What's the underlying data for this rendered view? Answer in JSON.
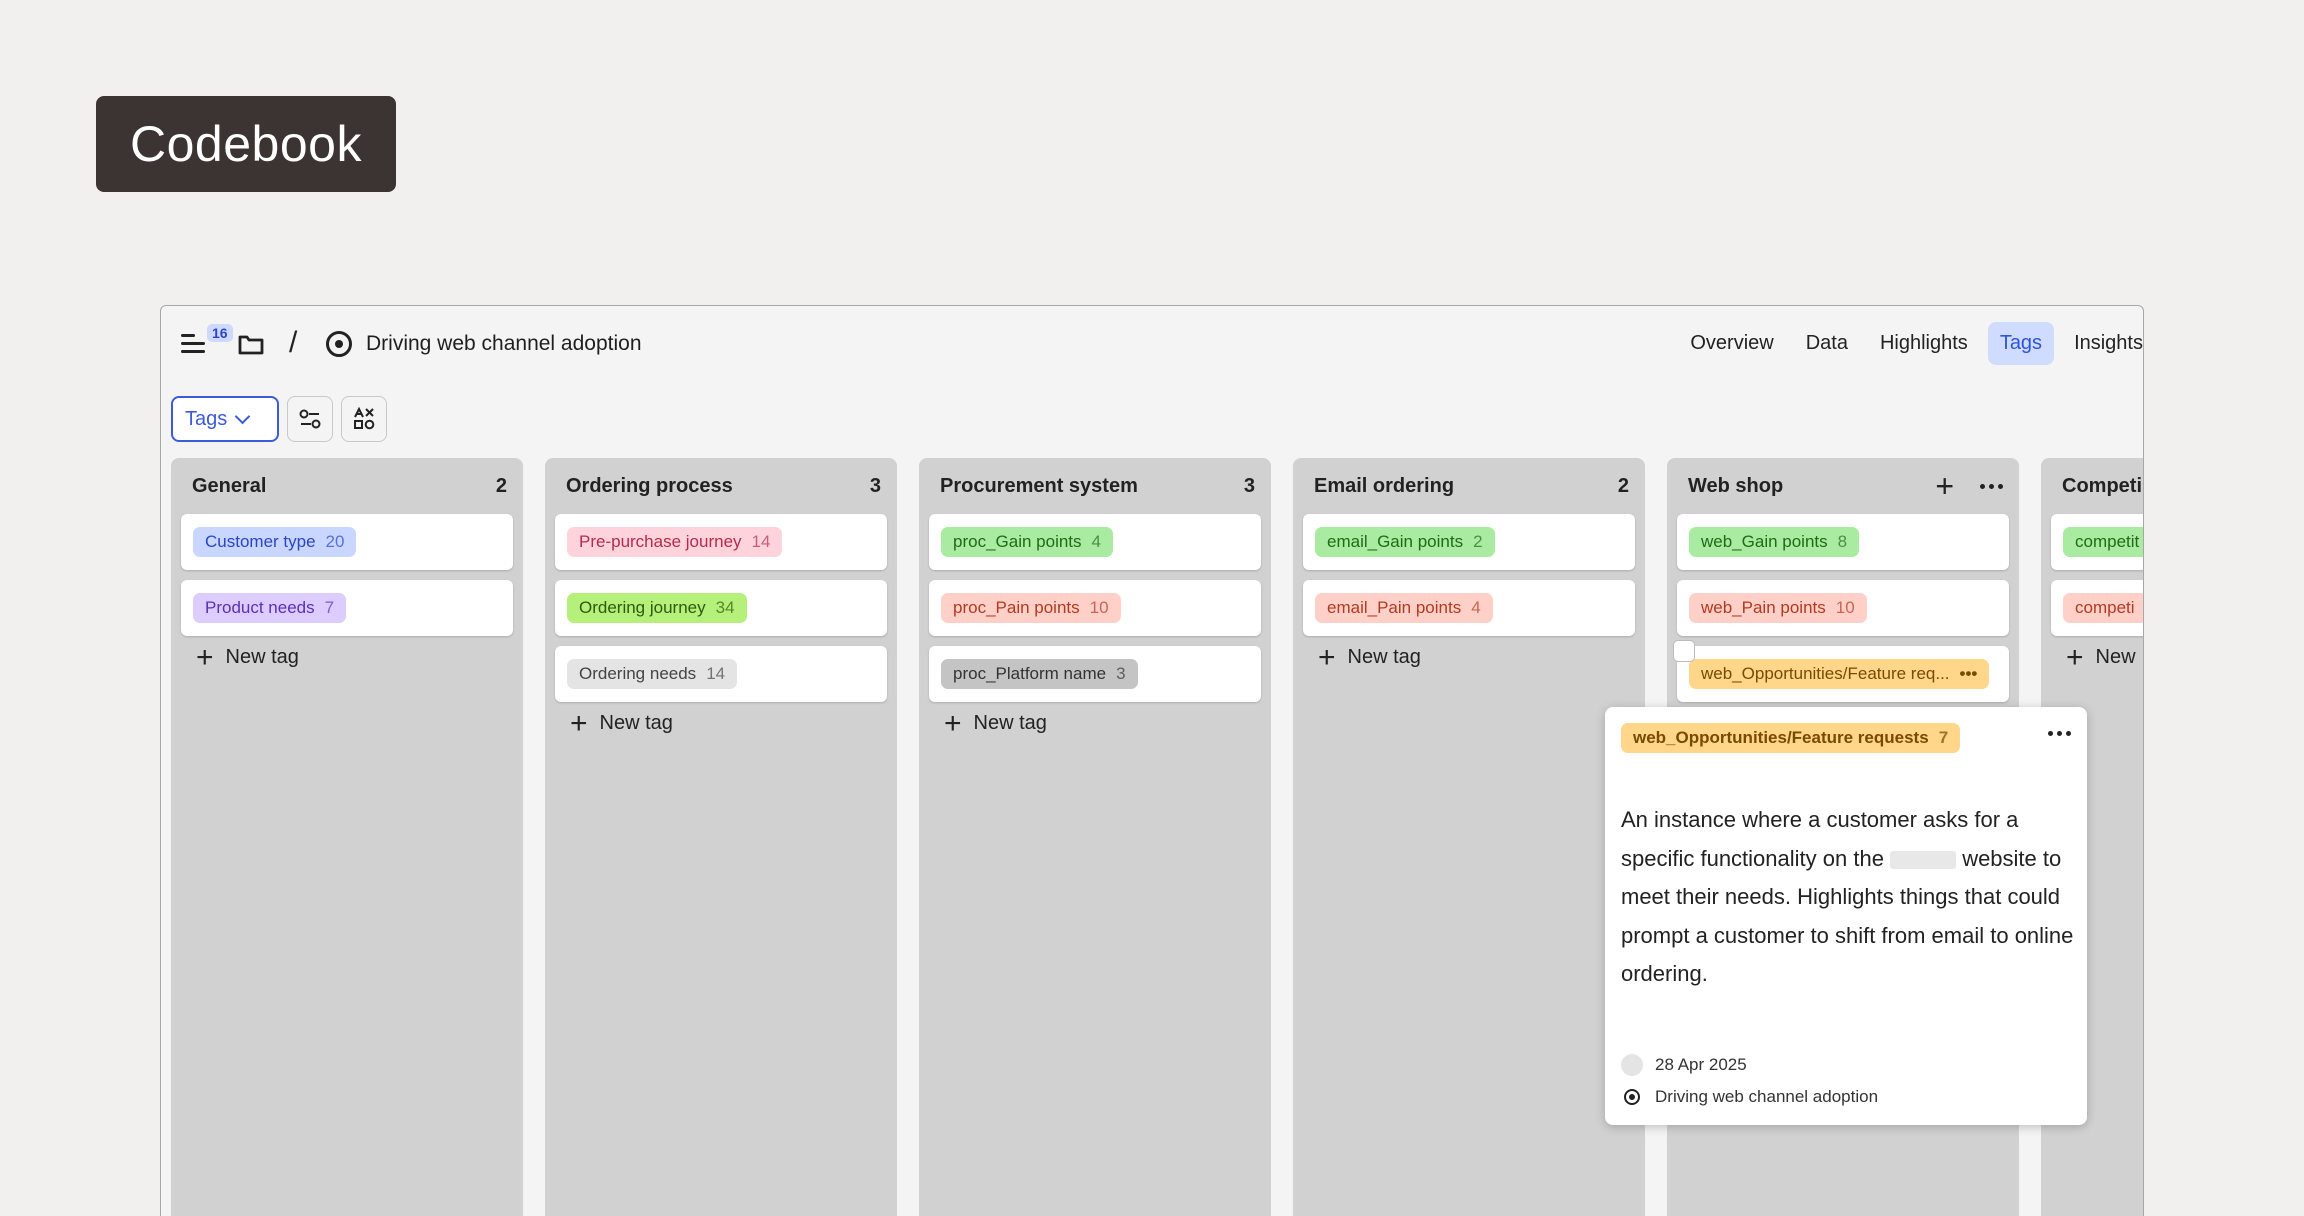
{
  "page": {
    "title": "Codebook"
  },
  "topbar": {
    "menu_badge": "16",
    "project_name": "Driving web channel adoption",
    "tabs": [
      {
        "label": "Overview",
        "active": false
      },
      {
        "label": "Data",
        "active": false
      },
      {
        "label": "Highlights",
        "active": false
      },
      {
        "label": "Tags",
        "active": true
      },
      {
        "label": "Insights",
        "active": false
      }
    ]
  },
  "toolbar": {
    "view_select": "Tags"
  },
  "new_tag_label": "New tag",
  "columns": [
    {
      "name": "General",
      "count": "2",
      "tags": [
        {
          "label": "Customer type",
          "count": "20",
          "bg": "#c9d6ff",
          "fg": "#2b45c9"
        },
        {
          "label": "Product needs",
          "count": "7",
          "bg": "#dcccff",
          "fg": "#5b2fb8"
        }
      ]
    },
    {
      "name": "Ordering process",
      "count": "3",
      "tags": [
        {
          "label": "Pre-purchase journey",
          "count": "14",
          "bg": "#ffd3dc",
          "fg": "#b52b4c"
        },
        {
          "label": "Ordering journey",
          "count": "34",
          "bg": "#b5f07a",
          "fg": "#2d5a07"
        },
        {
          "label": "Ordering needs",
          "count": "14",
          "bg": "#e4e4e4",
          "fg": "#444444"
        }
      ]
    },
    {
      "name": "Procurement system",
      "count": "3",
      "tags": [
        {
          "label": "proc_Gain points",
          "count": "4",
          "bg": "#a9eba1",
          "fg": "#1f6b16"
        },
        {
          "label": "proc_Pain points",
          "count": "10",
          "bg": "#ffd0c7",
          "fg": "#b23a22"
        },
        {
          "label": "proc_Platform name",
          "count": "3",
          "bg": "#c4c4c4",
          "fg": "#333333"
        }
      ]
    },
    {
      "name": "Email ordering",
      "count": "2",
      "tags": [
        {
          "label": "email_Gain points",
          "count": "2",
          "bg": "#a9eba1",
          "fg": "#1f6b16"
        },
        {
          "label": "email_Pain points",
          "count": "4",
          "bg": "#ffd0c7",
          "fg": "#b23a22"
        }
      ]
    },
    {
      "name": "Web shop",
      "count": "",
      "tags": [
        {
          "label": "web_Gain points",
          "count": "8",
          "bg": "#a9eba1",
          "fg": "#1f6b16"
        },
        {
          "label": "web_Pain points",
          "count": "10",
          "bg": "#ffd0c7",
          "fg": "#b23a22"
        },
        {
          "label": "web_Opportunities/Feature req...",
          "count": "",
          "bg": "#ffd68a",
          "fg": "#7a4a00"
        }
      ]
    },
    {
      "name": "Competi",
      "count": "",
      "tags": [
        {
          "label": "competit",
          "count": "",
          "bg": "#a9eba1",
          "fg": "#1f6b16"
        },
        {
          "label": "competi",
          "count": "",
          "bg": "#ffd0c7",
          "fg": "#b23a22"
        }
      ]
    }
  ],
  "last_new_tag_label": "New",
  "popover": {
    "tag_label": "web_Opportunities/Feature requests",
    "tag_count": "7",
    "tag_bg": "#ffd68a",
    "tag_fg": "#7a4a00",
    "desc_part1": "An instance where a customer asks for a specific functionality on the",
    "desc_part2": "website to meet their needs. Highlights things that could prompt a customer to shift from email to online ordering.",
    "date": "28 Apr 2025",
    "project": "Driving web channel adoption"
  }
}
